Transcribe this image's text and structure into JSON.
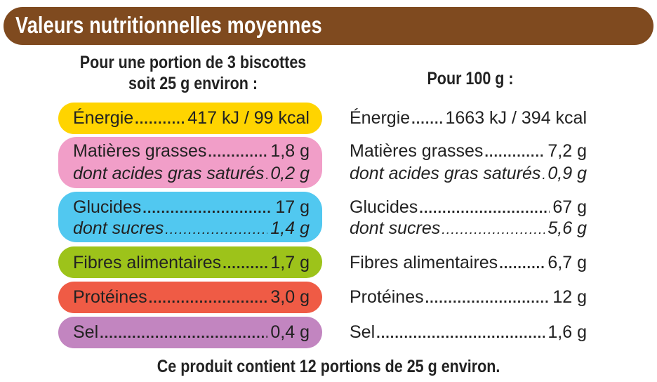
{
  "title": "Valeurs nutritionnelles moyennes",
  "portion_header": {
    "line1": "Pour une portion de 3 biscottes",
    "line2": "soit 25 g environ :"
  },
  "per100_header": "Pour 100 g :",
  "colors": {
    "header": "#7f4a1f",
    "energie": "#ffd400",
    "graisses": "#f19ec8",
    "glucides": "#51c8f0",
    "fibres": "#9dc31a",
    "proteines": "#ef5b45",
    "sel": "#c285c0"
  },
  "rows": [
    {
      "label": "Énergie",
      "portion": "417 kJ / 99 kcal",
      "per100": "1663 kJ / 394 kcal"
    },
    {
      "label": "Matières grasses",
      "portion": "1,8 g",
      "per100": "7,2 g"
    },
    {
      "label": "dont acides gras saturés",
      "portion": "0,2 g",
      "per100": "0,9 g"
    },
    {
      "label": "Glucides",
      "portion": "17 g",
      "per100": "67 g"
    },
    {
      "label": "dont sucres",
      "portion": "1,4 g",
      "per100": "5,6 g"
    },
    {
      "label": "Fibres alimentaires",
      "portion": "1,7 g",
      "per100": "6,7 g"
    },
    {
      "label": "Protéines",
      "portion": "3,0 g",
      "per100": "12 g"
    },
    {
      "label": "Sel",
      "portion": "0,4 g",
      "per100": "1,6 g"
    }
  ],
  "footer": "Ce produit contient 12 portions de 25 g environ."
}
